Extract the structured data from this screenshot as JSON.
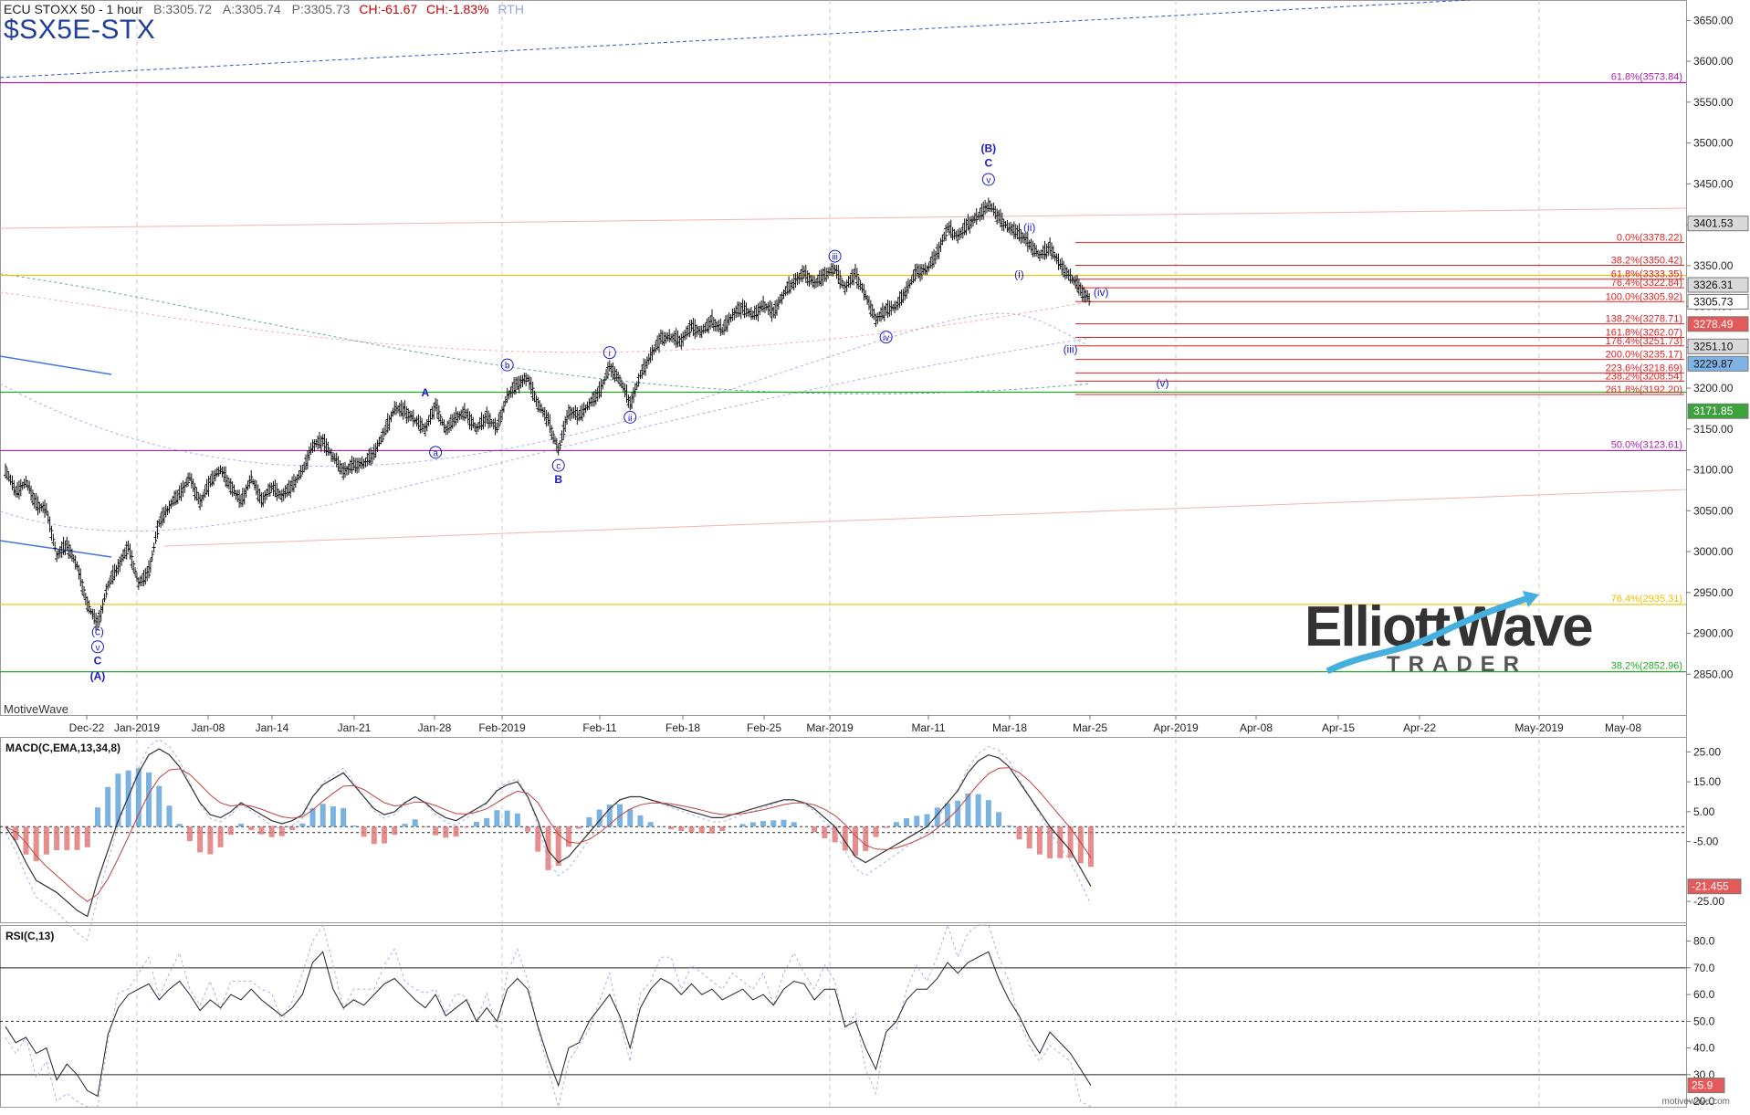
{
  "header": {
    "instrument": "ECU STOXX 50 - 1 hour",
    "bid": "B:3305.72",
    "ask": "A:3305.74",
    "price": "P:3305.73",
    "change": "CH:-61.67",
    "change_pct": "CH:-1.83%",
    "session": "RTH",
    "symbol": "$SX5E-STX"
  },
  "brand": {
    "platform": "MotiveWave",
    "site": "motivewave.com",
    "logo_word1": "Elliott",
    "logo_word2": "Wave",
    "logo_sub": "TRADER"
  },
  "colors": {
    "bar": "#111111",
    "wave": "#1a1acc",
    "fib_red": "#e02020",
    "fib_purple": "#aa22aa",
    "fib_yellow": "#f0c000",
    "fib_green": "#22aa22",
    "macd_up": "#5aa0d8",
    "macd_down": "#e07070"
  },
  "chart_data": [
    {
      "type": "candlestick",
      "title": "ECU STOXX 50 - 1 hour",
      "ylim": [
        2800,
        3675
      ],
      "x_ticks": [
        "Dec-22",
        "Jan-2019",
        "Jan-08",
        "Jan-14",
        "Jan-21",
        "Jan-28",
        "Feb-2019",
        "Feb-11",
        "Feb-18",
        "Feb-25",
        "Mar-2019",
        "Mar-11",
        "Mar-18",
        "Mar-25",
        "Apr-2019",
        "Apr-08",
        "Apr-15",
        "Apr-22",
        "May-2019",
        "May-08"
      ],
      "y_ticks": [
        "3650.00",
        "3600.00",
        "3550.00",
        "3500.00",
        "3450.00",
        "3400.00",
        "3350.00",
        "3300.00",
        "3250.00",
        "3200.00",
        "3150.00",
        "3100.00",
        "3050.00",
        "3000.00",
        "2950.00",
        "2900.00",
        "2850.00"
      ],
      "y_tick_values": [
        3650,
        3600,
        3550,
        3500,
        3450,
        3400,
        3350,
        3300,
        3250,
        3200,
        3150,
        3100,
        3050,
        3000,
        2950,
        2900,
        2850
      ],
      "price_path": [
        3100,
        3072,
        3085,
        3058,
        3050,
        2995,
        3008,
        2982,
        2935,
        2910,
        2958,
        2982,
        3005,
        2960,
        2975,
        3035,
        3055,
        3070,
        3090,
        3060,
        3085,
        3100,
        3080,
        3060,
        3090,
        3062,
        3078,
        3068,
        3080,
        3098,
        3130,
        3135,
        3115,
        3098,
        3105,
        3108,
        3120,
        3145,
        3175,
        3172,
        3160,
        3150,
        3178,
        3148,
        3165,
        3168,
        3150,
        3165,
        3150,
        3190,
        3205,
        3212,
        3180,
        3160,
        3123,
        3172,
        3165,
        3180,
        3195,
        3225,
        3210,
        3180,
        3215,
        3240,
        3260,
        3262,
        3258,
        3275,
        3268,
        3282,
        3270,
        3290,
        3298,
        3288,
        3302,
        3292,
        3315,
        3330,
        3340,
        3328,
        3338,
        3345,
        3322,
        3340,
        3312,
        3284,
        3295,
        3300,
        3320,
        3342,
        3345,
        3365,
        3395,
        3385,
        3400,
        3410,
        3425,
        3408,
        3395,
        3390,
        3375,
        3362,
        3372,
        3350,
        3336,
        3320,
        3306
      ],
      "horizontal_levels": [
        {
          "label": "61.8%(3573.84)",
          "value": 3573.84,
          "color": "purple"
        },
        {
          "label": "50.0%(3123.61)",
          "value": 3123.61,
          "color": "purple"
        },
        {
          "label": "76.4%(2935.31)",
          "value": 2935.31,
          "color": "yellow"
        },
        {
          "label": "38.2%(2852.96)",
          "value": 2852.96,
          "color": "green"
        },
        {
          "label": "",
          "value": 3338,
          "color": "yellow"
        },
        {
          "label": "",
          "value": 3195,
          "color": "green"
        }
      ],
      "fib_projection": [
        {
          "label": "0.0%(3378.22)",
          "value": 3378.22
        },
        {
          "label": "38.2%(3350.42)",
          "value": 3350.42
        },
        {
          "label": "61.8%(3333.35)",
          "value": 3333.35
        },
        {
          "label": "76.4%(3322.84)",
          "value": 3322.84
        },
        {
          "label": "100.0%(3305.92)",
          "value": 3305.92
        },
        {
          "label": "138.2%(3278.71)",
          "value": 3278.71
        },
        {
          "label": "161.8%(3262.07)",
          "value": 3262.07
        },
        {
          "label": "176.4%(3251.73)",
          "value": 3251.73
        },
        {
          "label": "200.0%(3235.17)",
          "value": 3235.17
        },
        {
          "label": "223.6%(3218.69)",
          "value": 3218.69
        },
        {
          "label": "238.2%(3208.54)",
          "value": 3208.54
        },
        {
          "label": "261.8%(3192.20)",
          "value": 3192.2
        }
      ],
      "price_badges": [
        {
          "label": "3401.53",
          "value": 3401.53,
          "style": "gray"
        },
        {
          "label": "3326.31",
          "value": 3326.31,
          "style": "gray"
        },
        {
          "label": "3305.73",
          "value": 3305.73,
          "style": "white"
        },
        {
          "label": "3278.49",
          "value": 3278.49,
          "style": "red"
        },
        {
          "label": "3251.10",
          "value": 3251.1,
          "style": "gray"
        },
        {
          "label": "3229.87",
          "value": 3229.87,
          "style": "blue"
        },
        {
          "label": "3171.85",
          "value": 3171.85,
          "style": "green"
        }
      ],
      "wave_labels": [
        {
          "text": "(c)",
          "x_bar": 9,
          "price": 2898,
          "circled": false
        },
        {
          "text": "v",
          "x_bar": 9,
          "price": 2879,
          "circled": true
        },
        {
          "text": "C",
          "x_bar": 9,
          "price": 2862,
          "circled": false,
          "bold": true
        },
        {
          "text": "(A)",
          "x_bar": 9,
          "price": 2843,
          "circled": false,
          "bold": true
        },
        {
          "text": "A",
          "x_bar": 41,
          "price": 3190,
          "circled": false,
          "bold": true
        },
        {
          "text": "a",
          "x_bar": 42,
          "price": 3117,
          "circled": true
        },
        {
          "text": "b",
          "x_bar": 49,
          "price": 3224,
          "circled": true
        },
        {
          "text": "c",
          "x_bar": 54,
          "price": 3101,
          "circled": true
        },
        {
          "text": "B",
          "x_bar": 54,
          "price": 3084,
          "circled": false,
          "bold": true
        },
        {
          "text": "i",
          "x_bar": 59,
          "price": 3239,
          "circled": true
        },
        {
          "text": "ii",
          "x_bar": 61,
          "price": 3160,
          "circled": true
        },
        {
          "text": "iii",
          "x_bar": 81,
          "price": 3357,
          "circled": true
        },
        {
          "text": "iv",
          "x_bar": 86,
          "price": 3258,
          "circled": true
        },
        {
          "text": "(B)",
          "x_bar": 96,
          "price": 3489,
          "circled": false,
          "bold": true
        },
        {
          "text": "C",
          "x_bar": 96,
          "price": 3471,
          "circled": false,
          "bold": true
        },
        {
          "text": "v",
          "x_bar": 96,
          "price": 3451,
          "circled": true
        },
        {
          "text": "(ii)",
          "x_bar": 100,
          "price": 3392,
          "circled": false
        },
        {
          "text": "(i)",
          "x_bar": 99,
          "price": 3335,
          "circled": false
        },
        {
          "text": "(iv)",
          "x_bar": 107,
          "price": 3313,
          "circled": false
        },
        {
          "text": "(iii)",
          "x_bar": 104,
          "price": 3243,
          "circled": false
        },
        {
          "text": "(v)",
          "x_bar": 113,
          "price": 3202,
          "circled": false
        }
      ]
    },
    {
      "type": "bar",
      "title": "MACD(C,EMA,13,34,8)",
      "ylim": [
        -32,
        30
      ],
      "y_ticks": [
        "25.00",
        "15.00",
        "5.00",
        "-5.00",
        "-25.00"
      ],
      "y_tick_values": [
        25,
        15,
        5,
        -5,
        -25
      ],
      "macd_line": [
        0,
        -5,
        -12,
        -18,
        -20,
        -22,
        -25,
        -28,
        -30,
        -18,
        -8,
        2,
        10,
        18,
        24,
        26,
        24,
        20,
        14,
        8,
        4,
        3,
        5,
        8,
        6,
        4,
        2,
        1,
        2,
        4,
        10,
        14,
        16,
        18,
        14,
        10,
        6,
        4,
        5,
        8,
        10,
        8,
        5,
        3,
        2,
        4,
        6,
        8,
        12,
        14,
        15,
        10,
        2,
        -8,
        -12,
        -10,
        -6,
        -2,
        2,
        6,
        9,
        10,
        10,
        9,
        8,
        7,
        6,
        5,
        4,
        3,
        3,
        4,
        5,
        6,
        7,
        8,
        9,
        9,
        8,
        6,
        3,
        0,
        -5,
        -10,
        -12,
        -10,
        -8,
        -6,
        -4,
        -2,
        0,
        4,
        8,
        12,
        18,
        22,
        24,
        23,
        20,
        15,
        10,
        5,
        0,
        -4,
        -8,
        -14,
        -20
      ],
      "current_value": "-21.455",
      "reference_lines": [
        0,
        -2
      ]
    },
    {
      "type": "line",
      "title": "RSI(C,13)",
      "ylim": [
        18,
        86
      ],
      "y_ticks": [
        "80.0",
        "70.0",
        "60.0",
        "50.0",
        "40.0",
        "30.0",
        "20.0"
      ],
      "y_tick_values": [
        80,
        70,
        60,
        50,
        40,
        30,
        20
      ],
      "rsi": [
        48,
        42,
        44,
        38,
        40,
        28,
        34,
        30,
        24,
        22,
        45,
        55,
        60,
        62,
        64,
        58,
        62,
        65,
        60,
        54,
        58,
        55,
        60,
        58,
        62,
        58,
        55,
        52,
        55,
        60,
        72,
        76,
        62,
        55,
        58,
        56,
        60,
        64,
        66,
        62,
        58,
        55,
        60,
        52,
        55,
        58,
        50,
        55,
        50,
        62,
        66,
        62,
        48,
        36,
        26,
        40,
        42,
        50,
        55,
        60,
        52,
        40,
        55,
        62,
        66,
        64,
        60,
        64,
        60,
        62,
        58,
        60,
        62,
        58,
        60,
        56,
        62,
        65,
        64,
        58,
        62,
        62,
        48,
        50,
        40,
        32,
        46,
        50,
        58,
        62,
        62,
        66,
        72,
        68,
        72,
        74,
        76,
        66,
        58,
        52,
        44,
        38,
        46,
        42,
        38,
        32,
        26
      ],
      "current_value": "25.9",
      "reference_lines": [
        70,
        50,
        30
      ]
    }
  ]
}
